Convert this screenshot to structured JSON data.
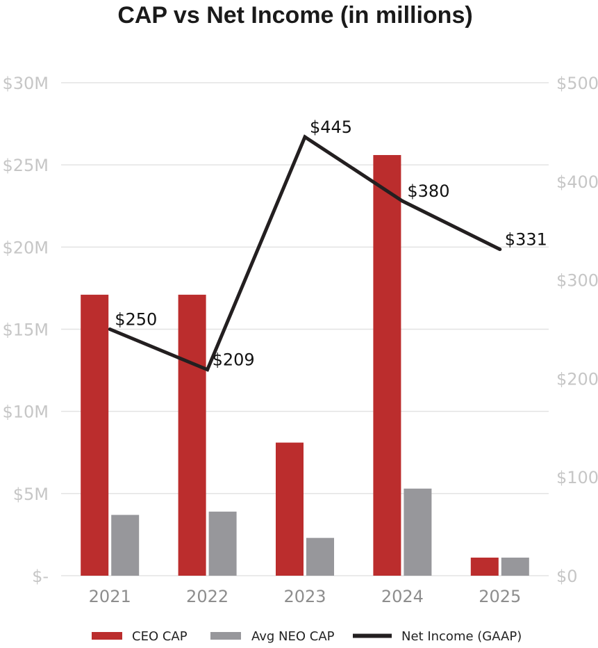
{
  "chart_data": {
    "type": "bar",
    "title": "CAP vs Net Income (in millions)",
    "categories": [
      "2021",
      "2022",
      "2023",
      "2024",
      "2025"
    ],
    "series": [
      {
        "name": "CEO CAP",
        "type": "bar",
        "axis": "left",
        "color": "#bb2d2d",
        "values": [
          17.1,
          17.1,
          8.1,
          25.6,
          1.1
        ]
      },
      {
        "name": "Avg NEO CAP",
        "type": "bar",
        "axis": "left",
        "color": "#97979b",
        "values": [
          3.7,
          3.9,
          2.3,
          5.3,
          1.1
        ]
      },
      {
        "name": "Net Income (GAAP)",
        "type": "line",
        "axis": "right",
        "color": "#231f20",
        "values": [
          250,
          209,
          445,
          380,
          331
        ],
        "data_labels": [
          "$250",
          "$209",
          "$445",
          "$380",
          "$331"
        ]
      }
    ],
    "left_axis": {
      "ylim": [
        0,
        30
      ],
      "ticks": [
        0,
        5,
        10,
        15,
        20,
        25,
        30
      ],
      "tick_labels": [
        "$-",
        "$5M",
        "$10M",
        "$15M",
        "$20M",
        "$25M",
        "$30M"
      ]
    },
    "right_axis": {
      "ylim": [
        0,
        500
      ],
      "ticks": [
        0,
        100,
        200,
        300,
        400,
        500
      ],
      "tick_labels": [
        "$0",
        "$100",
        "$200",
        "$300",
        "$400",
        "$500"
      ]
    },
    "legend": {
      "position": "bottom",
      "entries": [
        "CEO CAP",
        "Avg NEO CAP",
        "Net Income (GAAP)"
      ]
    },
    "grid": true
  }
}
